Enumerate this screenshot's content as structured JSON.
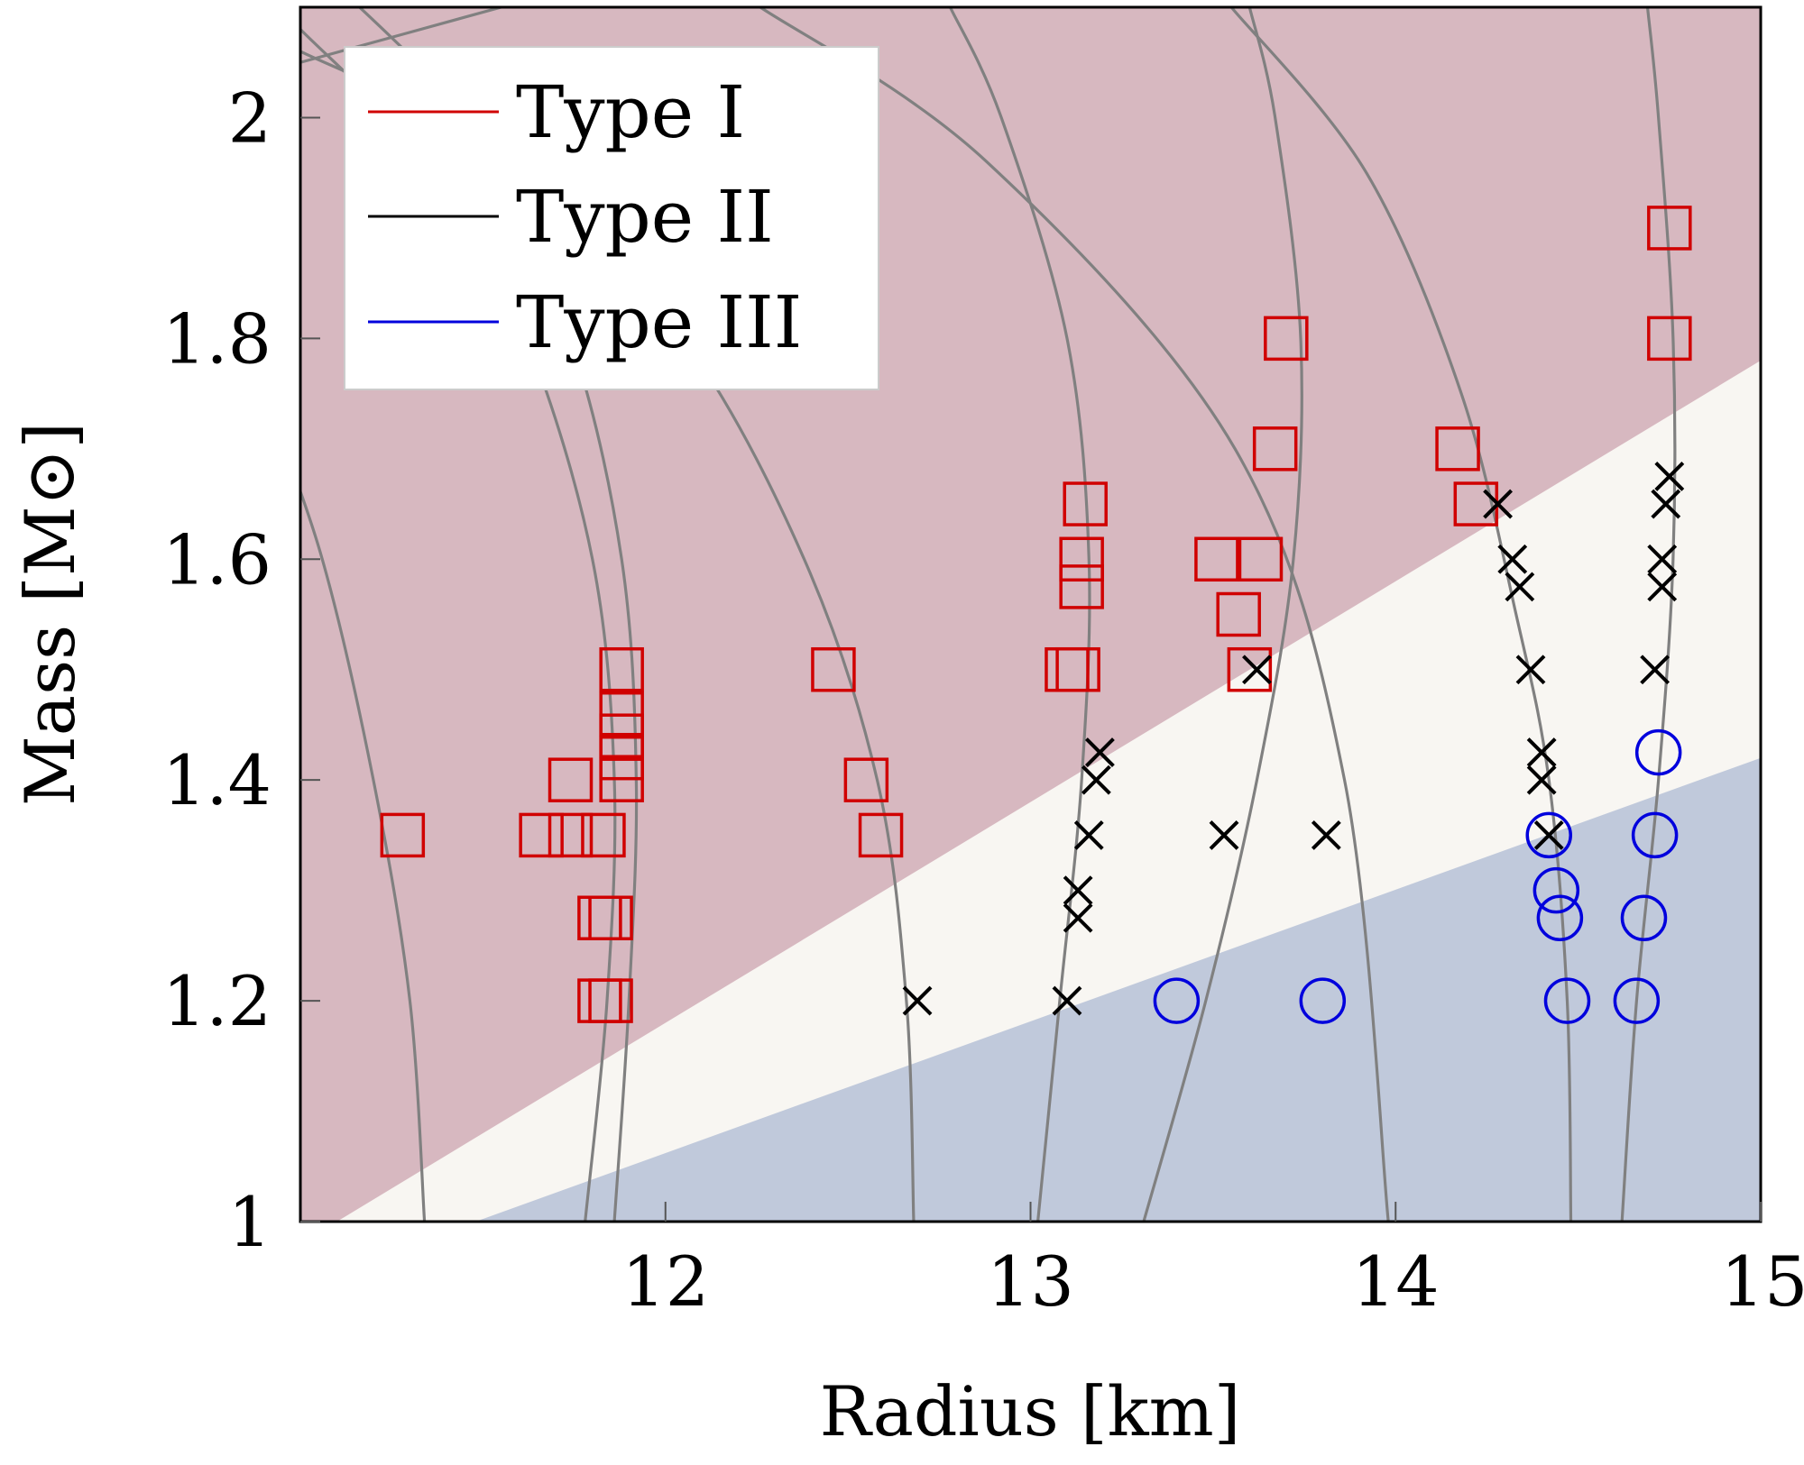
{
  "chart_data": {
    "type": "scatter",
    "xlabel": "Radius [km]",
    "ylabel": "Mass [M⊙]",
    "xlim": [
      11.0,
      15.0
    ],
    "ylim": [
      1.0,
      2.1
    ],
    "xticks": [
      12,
      13,
      14,
      15
    ],
    "xtick_labels": [
      "12",
      "13",
      "14",
      "15"
    ],
    "yticks": [
      1.0,
      1.2,
      1.4,
      1.6,
      1.8,
      2.0
    ],
    "ytick_labels": [
      "1",
      "1.2",
      "1.4",
      "1.6",
      "1.8",
      "2"
    ],
    "legend_position": "top-left",
    "background_regions": [
      {
        "name": "Type I region",
        "color": "#d7b8c0",
        "boundary_upper": [
          [
            11.1,
            1.0
          ],
          [
            15.0,
            1.78
          ]
        ]
      },
      {
        "name": "Type II region",
        "color": "#f8f6f2"
      },
      {
        "name": "Type III region",
        "color": "#c0c9db",
        "boundary_lower": [
          [
            11.48,
            1.0
          ],
          [
            15.0,
            1.42
          ]
        ]
      }
    ],
    "series": [
      {
        "name": "Type I",
        "marker": "square",
        "color": "#d00000",
        "points": [
          [
            11.28,
            1.35
          ],
          [
            11.66,
            1.35
          ],
          [
            11.74,
            1.35
          ],
          [
            11.83,
            1.35
          ],
          [
            11.74,
            1.4
          ],
          [
            11.88,
            1.4
          ],
          [
            11.88,
            1.42
          ],
          [
            11.88,
            1.44
          ],
          [
            11.88,
            1.46
          ],
          [
            11.88,
            1.5
          ],
          [
            11.82,
            1.275
          ],
          [
            11.85,
            1.275
          ],
          [
            11.82,
            1.2
          ],
          [
            11.85,
            1.2
          ],
          [
            12.46,
            1.5
          ],
          [
            12.55,
            1.4
          ],
          [
            12.59,
            1.35
          ],
          [
            13.1,
            1.5
          ],
          [
            13.13,
            1.5
          ],
          [
            13.14,
            1.575
          ],
          [
            13.14,
            1.6
          ],
          [
            13.15,
            1.65
          ],
          [
            13.51,
            1.6
          ],
          [
            13.63,
            1.6
          ],
          [
            13.57,
            1.55
          ],
          [
            13.6,
            1.5
          ],
          [
            13.67,
            1.7
          ],
          [
            13.7,
            1.8
          ],
          [
            14.17,
            1.7
          ],
          [
            14.22,
            1.65
          ],
          [
            14.75,
            1.8
          ],
          [
            14.75,
            1.9
          ]
        ]
      },
      {
        "name": "Type II",
        "marker": "x",
        "color": "#000000",
        "points": [
          [
            12.69,
            1.2
          ],
          [
            13.1,
            1.2
          ],
          [
            13.13,
            1.275
          ],
          [
            13.13,
            1.3
          ],
          [
            13.16,
            1.35
          ],
          [
            13.18,
            1.4
          ],
          [
            13.19,
            1.425
          ],
          [
            13.53,
            1.35
          ],
          [
            13.62,
            1.5
          ],
          [
            13.81,
            1.35
          ],
          [
            14.28,
            1.65
          ],
          [
            14.32,
            1.6
          ],
          [
            14.34,
            1.575
          ],
          [
            14.37,
            1.5
          ],
          [
            14.4,
            1.425
          ],
          [
            14.4,
            1.4
          ],
          [
            14.42,
            1.35
          ],
          [
            14.71,
            1.5
          ],
          [
            14.73,
            1.575
          ],
          [
            14.73,
            1.6
          ],
          [
            14.74,
            1.65
          ],
          [
            14.75,
            1.675
          ]
        ]
      },
      {
        "name": "Type III",
        "marker": "circle",
        "color": "#0000dd",
        "points": [
          [
            13.4,
            1.2
          ],
          [
            13.8,
            1.2
          ],
          [
            14.42,
            1.35
          ],
          [
            14.44,
            1.3
          ],
          [
            14.45,
            1.275
          ],
          [
            14.47,
            1.2
          ],
          [
            14.66,
            1.2
          ],
          [
            14.68,
            1.275
          ],
          [
            14.71,
            1.35
          ],
          [
            14.72,
            1.425
          ]
        ]
      }
    ],
    "model_curves": {
      "name": "gray mass-radius curves",
      "color": "#808080",
      "curves": [
        [
          [
            11.34,
            1.0
          ],
          [
            11.3,
            1.2
          ],
          [
            11.2,
            1.4
          ],
          [
            11.06,
            1.6
          ],
          [
            10.9,
            1.75
          ]
        ],
        [
          [
            11.78,
            1.0
          ],
          [
            11.84,
            1.2
          ],
          [
            11.86,
            1.4
          ],
          [
            11.8,
            1.6
          ],
          [
            11.62,
            1.8
          ],
          [
            11.38,
            1.95
          ],
          [
            11.0,
            2.08
          ]
        ],
        [
          [
            11.86,
            1.0
          ],
          [
            11.9,
            1.2
          ],
          [
            11.92,
            1.4
          ],
          [
            11.88,
            1.6
          ],
          [
            11.74,
            1.8
          ],
          [
            11.5,
            1.98
          ],
          [
            11.1,
            2.12
          ]
        ],
        [
          [
            12.68,
            1.0
          ],
          [
            12.66,
            1.2
          ],
          [
            12.58,
            1.4
          ],
          [
            12.38,
            1.6
          ],
          [
            12.05,
            1.8
          ],
          [
            11.6,
            1.96
          ],
          [
            11.0,
            2.06
          ]
        ],
        [
          [
            13.02,
            1.0
          ],
          [
            13.08,
            1.2
          ],
          [
            13.14,
            1.4
          ],
          [
            13.16,
            1.6
          ],
          [
            13.1,
            1.8
          ],
          [
            12.92,
            2.0
          ],
          [
            12.78,
            2.1
          ]
        ],
        [
          [
            13.31,
            1.0
          ],
          [
            13.48,
            1.2
          ],
          [
            13.62,
            1.4
          ],
          [
            13.72,
            1.6
          ],
          [
            13.74,
            1.8
          ],
          [
            13.67,
            2.0
          ],
          [
            13.6,
            2.1
          ]
        ],
        [
          [
            14.48,
            1.0
          ],
          [
            14.47,
            1.2
          ],
          [
            14.42,
            1.4
          ],
          [
            14.33,
            1.55
          ],
          [
            14.18,
            1.75
          ],
          [
            13.92,
            1.95
          ],
          [
            13.55,
            2.1
          ]
        ],
        [
          [
            14.62,
            1.0
          ],
          [
            14.66,
            1.2
          ],
          [
            14.72,
            1.4
          ],
          [
            14.76,
            1.6
          ],
          [
            14.76,
            1.8
          ],
          [
            14.72,
            2.0
          ],
          [
            14.69,
            2.1
          ]
        ],
        [
          [
            13.98,
            1.0
          ],
          [
            13.86,
            1.4
          ],
          [
            13.56,
            1.7
          ],
          [
            12.88,
            1.96
          ],
          [
            12.26,
            2.1
          ]
        ],
        [
          [
            11.0,
            2.05
          ],
          [
            11.55,
            2.1
          ]
        ]
      ]
    }
  },
  "legend": {
    "items": [
      {
        "label": "Type I",
        "color": "#d00000"
      },
      {
        "label": "Type II",
        "color": "#000000"
      },
      {
        "label": "Type III",
        "color": "#0000dd"
      }
    ]
  }
}
